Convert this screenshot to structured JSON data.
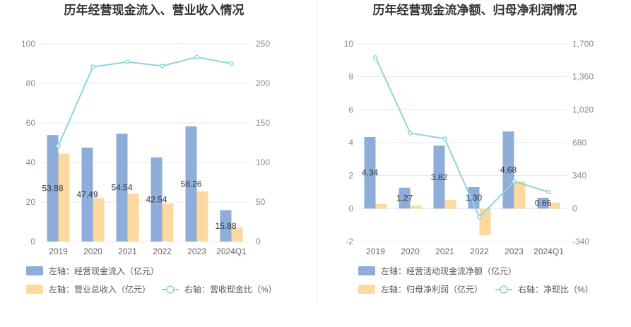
{
  "colors": {
    "bar1": "#8eadd9",
    "bar2": "#fdd9a0",
    "line": "#8ad6dd",
    "grid": "#e6e8ef",
    "divider": "#eeeeee"
  },
  "chart_data": [
    {
      "type": "bar",
      "title": "历年经营现金流入、营业收入情况",
      "categories": [
        "2019",
        "2020",
        "2021",
        "2022",
        "2023",
        "2024Q1"
      ],
      "left_axis": {
        "ticks": [
          "0",
          "20",
          "40",
          "60",
          "80",
          "100"
        ],
        "range": [
          0,
          100
        ]
      },
      "right_axis": {
        "ticks": [
          "0",
          "50",
          "100",
          "150",
          "200",
          "250"
        ],
        "range": [
          0,
          250
        ]
      },
      "series": [
        {
          "name": "左轴：经营现金流入（亿元）",
          "axis": "left",
          "type": "bar",
          "values": [
            53.88,
            47.49,
            54.54,
            42.54,
            58.26,
            15.88
          ],
          "labels": [
            "53.88",
            "47.49",
            "54.54",
            "42.54",
            "58.26",
            "15.88"
          ]
        },
        {
          "name": "左轴：营业总收入（亿元）",
          "axis": "left",
          "type": "bar",
          "values": [
            44.5,
            21.9,
            24.2,
            19.2,
            25.3,
            7.1
          ]
        },
        {
          "name": "右轴：营收现金比（%）",
          "axis": "right",
          "type": "line",
          "values": [
            121,
            221,
            227,
            222,
            233,
            225
          ]
        }
      ],
      "legend": "bottom-left"
    },
    {
      "type": "bar",
      "title": "历年经营现金流净额、归母净利润情况",
      "categories": [
        "2019",
        "2020",
        "2021",
        "2022",
        "2023",
        "2024Q1"
      ],
      "left_axis": {
        "ticks": [
          "-2",
          "0",
          "2",
          "4",
          "6",
          "8",
          "10"
        ],
        "range": [
          -2,
          10
        ]
      },
      "right_axis": {
        "ticks": [
          "-340",
          "0",
          "340",
          "680",
          "1,020",
          "1,360",
          "1,700"
        ],
        "range": [
          -340,
          1700
        ]
      },
      "series": [
        {
          "name": "左轴：经营活动现金流净额（亿元）",
          "axis": "left",
          "type": "bar",
          "values": [
            4.34,
            1.27,
            3.82,
            1.3,
            4.68,
            0.66
          ],
          "labels": [
            "4.34",
            "1.27",
            "3.82",
            "1.30",
            "4.68",
            "0.66"
          ]
        },
        {
          "name": "左轴：归母净利润（亿元）",
          "axis": "left",
          "type": "bar",
          "values": [
            0.28,
            0.18,
            0.52,
            -1.62,
            1.65,
            0.36
          ]
        },
        {
          "name": "右轴：净现比（%）",
          "axis": "right",
          "type": "line",
          "values": [
            1560,
            780,
            720,
            -90,
            280,
            170
          ]
        }
      ],
      "legend": "bottom-left"
    }
  ]
}
